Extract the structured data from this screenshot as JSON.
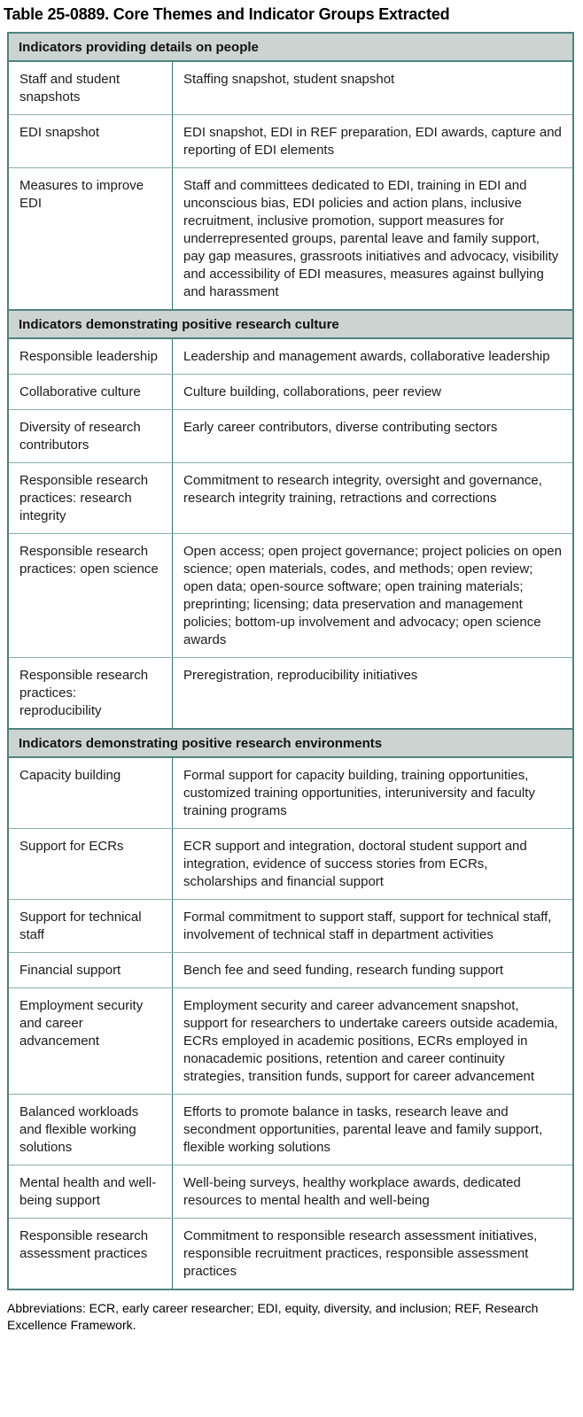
{
  "title": "Table 25-0889. Core Themes and Indicator Groups Extracted",
  "footnote": "Abbreviations: ECR, early career researcher; EDI, equity, diversity, and inclusion; REF, Research Excellence Framework.",
  "colors": {
    "outer_border": "#4f8380",
    "section_header_bg": "#ccd4d1",
    "row_divider": "#8aaeab",
    "column_divider": "#2e7a77",
    "text": "#1b1b1b"
  },
  "sections": [
    {
      "header": "Indicators providing details on people",
      "rows": [
        {
          "theme": "Staff and student snapshots",
          "indicators": "Staffing snapshot, student snapshot"
        },
        {
          "theme": "EDI snapshot",
          "indicators": "EDI snapshot, EDI in REF preparation, EDI awards, capture and reporting of EDI elements"
        },
        {
          "theme": "Measures to improve EDI",
          "indicators": "Staff and committees dedicated to EDI, training in EDI and unconscious bias, EDI policies and action plans, inclusive recruitment, inclusive promotion, support measures for underrepresented groups, parental leave and family support, pay gap measures, grassroots initiatives and advocacy, visibility and accessibility of EDI measures, measures against bullying and harassment"
        }
      ]
    },
    {
      "header": "Indicators demonstrating positive research culture",
      "rows": [
        {
          "theme": "Responsible leadership",
          "indicators": "Leadership and management awards, collaborative leadership"
        },
        {
          "theme": "Collaborative culture",
          "indicators": "Culture building, collaborations, peer review"
        },
        {
          "theme": "Diversity of research contributors",
          "indicators": "Early career contributors, diverse contributing sectors"
        },
        {
          "theme": "Responsible research practices: research integrity",
          "indicators": "Commitment to research integrity, oversight and governance, research integrity training, retractions and corrections"
        },
        {
          "theme": "Responsible research practices: open science",
          "indicators": "Open access; open project governance; project policies on open science; open materials, codes, and methods; open review; open data; open-source software; open training materials; preprinting; licensing; data preservation and management policies; bottom-up involvement and advocacy; open science awards"
        },
        {
          "theme": "Responsible research practices: reproducibility",
          "indicators": "Preregistration, reproducibility initiatives"
        }
      ]
    },
    {
      "header": "Indicators demonstrating positive research environments",
      "rows": [
        {
          "theme": "Capacity building",
          "indicators": "Formal support for capacity building, training opportunities, customized training opportunities, interuniversity and faculty training programs"
        },
        {
          "theme": "Support for ECRs",
          "indicators": "ECR support and integration, doctoral student support and integration, evidence of success stories from ECRs, scholarships and financial support"
        },
        {
          "theme": "Support for technical staff",
          "indicators": "Formal commitment to support staff, support for technical staff, involvement of technical staff in department activities"
        },
        {
          "theme": "Financial support",
          "indicators": "Bench fee and seed funding, research funding support"
        },
        {
          "theme": "Employment security and career advancement",
          "indicators": "Employment security and career advancement snapshot, support for researchers to undertake careers outside academia, ECRs employed in academic positions, ECRs employed in nonacademic positions, retention and career continuity strategies, transition funds, support for career advancement"
        },
        {
          "theme": "Balanced workloads and flexible working solutions",
          "indicators": "Efforts to promote balance in tasks, research leave and secondment opportunities, parental leave and family support, flexible working solutions"
        },
        {
          "theme": "Mental health and well-being support",
          "indicators": "Well-being surveys, healthy workplace awards, dedicated resources to mental health and well-being"
        },
        {
          "theme": "Responsible research assessment practices",
          "indicators": "Commitment to responsible research assessment initiatives, responsible recruitment practices, responsible assessment practices"
        }
      ]
    }
  ]
}
